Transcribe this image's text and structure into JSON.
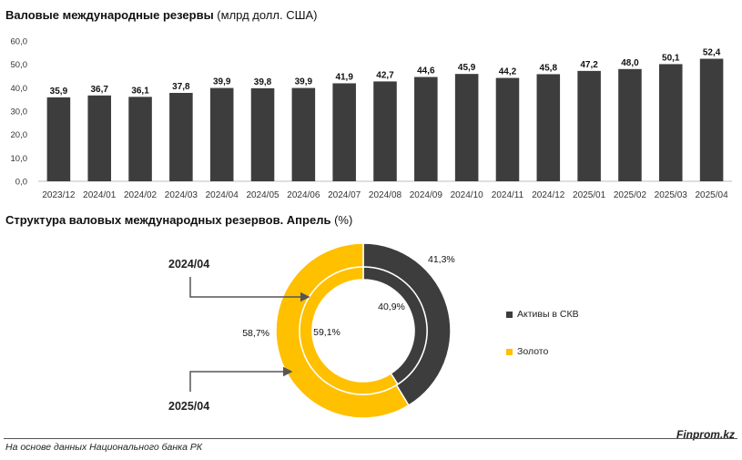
{
  "bar_chart": {
    "title_bold": "Валовые международные резервы",
    "title_normal": " (млрд долл. США)"
  },
  "donut_chart": {
    "title_bold": "Структура валовых международных резервов. Апрель",
    "title_normal": " (%)",
    "outer_callout": "2024/04",
    "inner_callout": "2025/04"
  },
  "colors": {
    "bar": "#3d3d3d",
    "fx": "#3d3d3d",
    "gold": "#ffc000"
  },
  "footer": {
    "source": "На основе данных Национального банка РК",
    "brand": "Finprom.kz"
  },
  "chart_data": [
    {
      "type": "bar",
      "categories": [
        "2023/12",
        "2024/01",
        "2024/02",
        "2024/03",
        "2024/04",
        "2024/05",
        "2024/06",
        "2024/07",
        "2024/08",
        "2024/09",
        "2024/10",
        "2024/11",
        "2024/12",
        "2025/01",
        "2025/02",
        "2025/03",
        "2025/04"
      ],
      "values": [
        35.9,
        36.7,
        36.1,
        37.8,
        39.9,
        39.8,
        39.9,
        41.9,
        42.7,
        44.6,
        45.9,
        44.2,
        45.8,
        47.2,
        48.0,
        50.1,
        52.4
      ],
      "value_labels": [
        "35,9",
        "36,7",
        "36,1",
        "37,8",
        "39,9",
        "39,8",
        "39,9",
        "41,9",
        "42,7",
        "44,6",
        "45,9",
        "44,2",
        "45,8",
        "47,2",
        "48,0",
        "50,1",
        "52,4"
      ],
      "ylim": [
        0,
        60
      ],
      "yticks": [
        "0,0",
        "10,0",
        "20,0",
        "30,0",
        "40,0",
        "50,0",
        "60,0"
      ],
      "grid": false,
      "title": "Валовые международные резервы (млрд долл. США)"
    },
    {
      "type": "pie",
      "variant": "donut",
      "categories": [
        "Активы в СКВ",
        "Золото"
      ],
      "series": [
        {
          "name": "2024/04",
          "values": [
            41.3,
            58.7
          ],
          "labels": [
            "41,3%",
            "58,7%"
          ]
        },
        {
          "name": "2025/04",
          "values": [
            40.9,
            59.1
          ],
          "labels": [
            "40,9%",
            "59,1%"
          ]
        }
      ],
      "legend": "right",
      "title": "Структура валовых международных резервов. Апрель (%)"
    }
  ]
}
